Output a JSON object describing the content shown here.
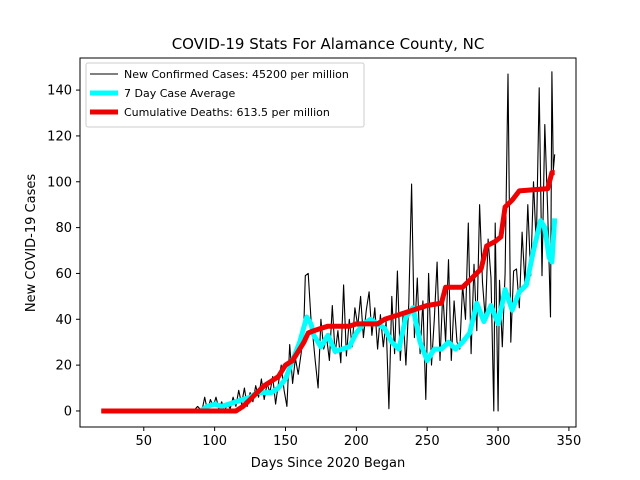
{
  "chart_data": {
    "type": "line",
    "title": "COVID-19 Stats For Alamance County, NC",
    "xlabel": "Days Since 2020 Began",
    "ylabel": "New COVID-19 Cases",
    "xlim": [
      5,
      355
    ],
    "ylim": [
      -7,
      154
    ],
    "xticks": [
      50,
      100,
      150,
      200,
      250,
      300,
      350
    ],
    "yticks": [
      0,
      20,
      40,
      60,
      80,
      100,
      120,
      140
    ],
    "grid": false,
    "legend_position": "top-left",
    "series": [
      {
        "name": "New Confirmed Cases: 45200 per million",
        "color": "#000000",
        "style": "thin",
        "points": [
          [
            20,
            0
          ],
          [
            40,
            0
          ],
          [
            60,
            0
          ],
          [
            80,
            0
          ],
          [
            85,
            0
          ],
          [
            88,
            2
          ],
          [
            91,
            0
          ],
          [
            93,
            6
          ],
          [
            95,
            0
          ],
          [
            97,
            5
          ],
          [
            99,
            2
          ],
          [
            101,
            6
          ],
          [
            103,
            1
          ],
          [
            105,
            4
          ],
          [
            107,
            0
          ],
          [
            109,
            3
          ],
          [
            111,
            1
          ],
          [
            113,
            6
          ],
          [
            115,
            2
          ],
          [
            117,
            9
          ],
          [
            119,
            3
          ],
          [
            121,
            10
          ],
          [
            123,
            2
          ],
          [
            125,
            8
          ],
          [
            127,
            4
          ],
          [
            129,
            11
          ],
          [
            131,
            6
          ],
          [
            133,
            14
          ],
          [
            135,
            5
          ],
          [
            137,
            12
          ],
          [
            139,
            8
          ],
          [
            141,
            15
          ],
          [
            143,
            3
          ],
          [
            145,
            12
          ],
          [
            147,
            20
          ],
          [
            149,
            9
          ],
          [
            151,
            2
          ],
          [
            153,
            29
          ],
          [
            155,
            12
          ],
          [
            157,
            23
          ],
          [
            159,
            16
          ],
          [
            161,
            25
          ],
          [
            163,
            38
          ],
          [
            164,
            59
          ],
          [
            166,
            60
          ],
          [
            168,
            40
          ],
          [
            169,
            35
          ],
          [
            171,
            22
          ],
          [
            173,
            10
          ],
          [
            175,
            40
          ],
          [
            177,
            27
          ],
          [
            179,
            32
          ],
          [
            181,
            22
          ],
          [
            183,
            46
          ],
          [
            185,
            25
          ],
          [
            187,
            35
          ],
          [
            189,
            21
          ],
          [
            191,
            55
          ],
          [
            193,
            24
          ],
          [
            195,
            40
          ],
          [
            197,
            28
          ],
          [
            199,
            45
          ],
          [
            201,
            37
          ],
          [
            203,
            50
          ],
          [
            205,
            32
          ],
          [
            207,
            44
          ],
          [
            209,
            52
          ],
          [
            211,
            33
          ],
          [
            213,
            45
          ],
          [
            215,
            27
          ],
          [
            217,
            42
          ],
          [
            219,
            28
          ],
          [
            221,
            39
          ],
          [
            223,
            1
          ],
          [
            225,
            50
          ],
          [
            227,
            25
          ],
          [
            229,
            61
          ],
          [
            231,
            22
          ],
          [
            233,
            42
          ],
          [
            235,
            20
          ],
          [
            237,
            47
          ],
          [
            239,
            99
          ],
          [
            241,
            32
          ],
          [
            243,
            58
          ],
          [
            245,
            25
          ],
          [
            247,
            48
          ],
          [
            249,
            5
          ],
          [
            251,
            60
          ],
          [
            253,
            20
          ],
          [
            255,
            40
          ],
          [
            257,
            65
          ],
          [
            259,
            22
          ],
          [
            261,
            52
          ],
          [
            263,
            30
          ],
          [
            265,
            66
          ],
          [
            267,
            22
          ],
          [
            269,
            48
          ],
          [
            271,
            30
          ],
          [
            273,
            27
          ],
          [
            275,
            55
          ],
          [
            277,
            40
          ],
          [
            279,
            82
          ],
          [
            281,
            25
          ],
          [
            283,
            64
          ],
          [
            285,
            35
          ],
          [
            287,
            90
          ],
          [
            289,
            56
          ],
          [
            291,
            40
          ],
          [
            293,
            75
          ],
          [
            295,
            58
          ],
          [
            297,
            0
          ],
          [
            298,
            82
          ],
          [
            300,
            0
          ],
          [
            301,
            57
          ],
          [
            303,
            28
          ],
          [
            305,
            60
          ],
          [
            307,
            147
          ],
          [
            309,
            30
          ],
          [
            311,
            61
          ],
          [
            313,
            62
          ],
          [
            315,
            45
          ],
          [
            317,
            78
          ],
          [
            319,
            55
          ],
          [
            321,
            90
          ],
          [
            323,
            59
          ],
          [
            325,
            100
          ],
          [
            327,
            72
          ],
          [
            329,
            141
          ],
          [
            331,
            59
          ],
          [
            333,
            125
          ],
          [
            335,
            87
          ],
          [
            337,
            41
          ],
          [
            338,
            148
          ],
          [
            339,
            105
          ],
          [
            340,
            112
          ]
        ]
      },
      {
        "name": "7 Day Case Average",
        "color": "#00ffff",
        "style": "thick",
        "points": [
          [
            20,
            0
          ],
          [
            90,
            0
          ],
          [
            95,
            2
          ],
          [
            100,
            3
          ],
          [
            105,
            2
          ],
          [
            110,
            3
          ],
          [
            115,
            4
          ],
          [
            120,
            5
          ],
          [
            125,
            6
          ],
          [
            130,
            8
          ],
          [
            135,
            8
          ],
          [
            140,
            8
          ],
          [
            145,
            10
          ],
          [
            150,
            14
          ],
          [
            155,
            22
          ],
          [
            160,
            30
          ],
          [
            165,
            41
          ],
          [
            168,
            38
          ],
          [
            170,
            33
          ],
          [
            175,
            28
          ],
          [
            180,
            33
          ],
          [
            185,
            26
          ],
          [
            190,
            27
          ],
          [
            195,
            28
          ],
          [
            200,
            34
          ],
          [
            205,
            38
          ],
          [
            210,
            40
          ],
          [
            215,
            38
          ],
          [
            220,
            36
          ],
          [
            225,
            30
          ],
          [
            230,
            27
          ],
          [
            235,
            41
          ],
          [
            240,
            45
          ],
          [
            245,
            30
          ],
          [
            250,
            22
          ],
          [
            255,
            27
          ],
          [
            260,
            27
          ],
          [
            265,
            30
          ],
          [
            270,
            27
          ],
          [
            275,
            30
          ],
          [
            280,
            34
          ],
          [
            285,
            47
          ],
          [
            290,
            39
          ],
          [
            295,
            46
          ],
          [
            300,
            38
          ],
          [
            305,
            53
          ],
          [
            310,
            44
          ],
          [
            315,
            52
          ],
          [
            320,
            55
          ],
          [
            325,
            70
          ],
          [
            330,
            83
          ],
          [
            333,
            80
          ],
          [
            336,
            67
          ],
          [
            338,
            65
          ],
          [
            340,
            84
          ]
        ]
      },
      {
        "name": "Cumulative Deaths: 613.5 per million",
        "color": "#ee0000",
        "style": "thick",
        "points": [
          [
            20,
            0
          ],
          [
            115,
            0
          ],
          [
            120,
            2
          ],
          [
            125,
            5
          ],
          [
            130,
            8
          ],
          [
            135,
            11
          ],
          [
            140,
            13
          ],
          [
            145,
            15
          ],
          [
            150,
            20
          ],
          [
            155,
            22
          ],
          [
            160,
            27
          ],
          [
            163,
            30
          ],
          [
            166,
            34
          ],
          [
            170,
            35
          ],
          [
            175,
            36
          ],
          [
            180,
            37
          ],
          [
            195,
            37
          ],
          [
            200,
            38
          ],
          [
            215,
            38
          ],
          [
            220,
            40
          ],
          [
            230,
            42
          ],
          [
            240,
            44
          ],
          [
            250,
            46
          ],
          [
            260,
            47
          ],
          [
            263,
            54
          ],
          [
            275,
            54
          ],
          [
            280,
            57
          ],
          [
            288,
            62
          ],
          [
            292,
            72
          ],
          [
            298,
            74
          ],
          [
            302,
            76
          ],
          [
            305,
            89
          ],
          [
            310,
            92
          ],
          [
            315,
            96
          ],
          [
            335,
            97
          ],
          [
            338,
            104
          ],
          [
            340,
            104
          ]
        ]
      }
    ]
  }
}
